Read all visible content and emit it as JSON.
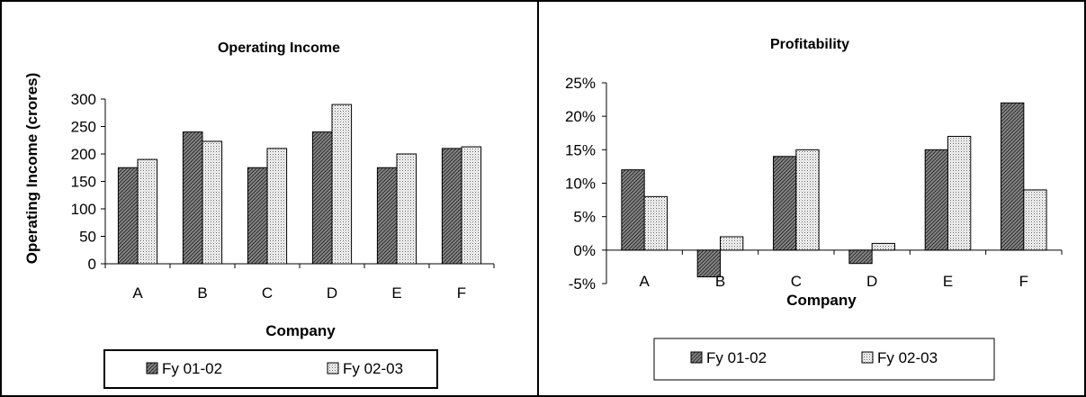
{
  "chart_data": [
    {
      "type": "bar",
      "title": "Operating Income",
      "xlabel": "Company",
      "ylabel": "Operating Income (crores)",
      "categories": [
        "A",
        "B",
        "C",
        "D",
        "E",
        "F"
      ],
      "series": [
        {
          "name": "Fy 01-02",
          "values": [
            175,
            240,
            175,
            240,
            175,
            210
          ]
        },
        {
          "name": "Fy 02-03",
          "values": [
            190,
            223,
            210,
            290,
            200,
            213
          ]
        }
      ],
      "ylim": [
        0,
        300
      ],
      "yticks": [
        "0",
        "50",
        "100",
        "150",
        "200",
        "250",
        "300"
      ],
      "ytick_values": [
        0,
        50,
        100,
        150,
        200,
        250,
        300
      ],
      "grid": false,
      "legend": "bottom"
    },
    {
      "type": "bar",
      "title": "Profitability",
      "xlabel": "Company",
      "ylabel": "",
      "categories": [
        "A",
        "B",
        "C",
        "D",
        "E",
        "F"
      ],
      "series": [
        {
          "name": "Fy 01-02",
          "values": [
            12,
            -4,
            14,
            -2,
            15,
            22
          ]
        },
        {
          "name": "Fy 02-03",
          "values": [
            8,
            2,
            15,
            1,
            17,
            9
          ]
        }
      ],
      "ylim": [
        -5,
        25
      ],
      "yticks": [
        "-5%",
        "0%",
        "5%",
        "10%",
        "15%",
        "20%",
        "25%"
      ],
      "ytick_values": [
        -5,
        0,
        5,
        10,
        15,
        20,
        25
      ],
      "grid": false,
      "legend": "bottom"
    }
  ]
}
